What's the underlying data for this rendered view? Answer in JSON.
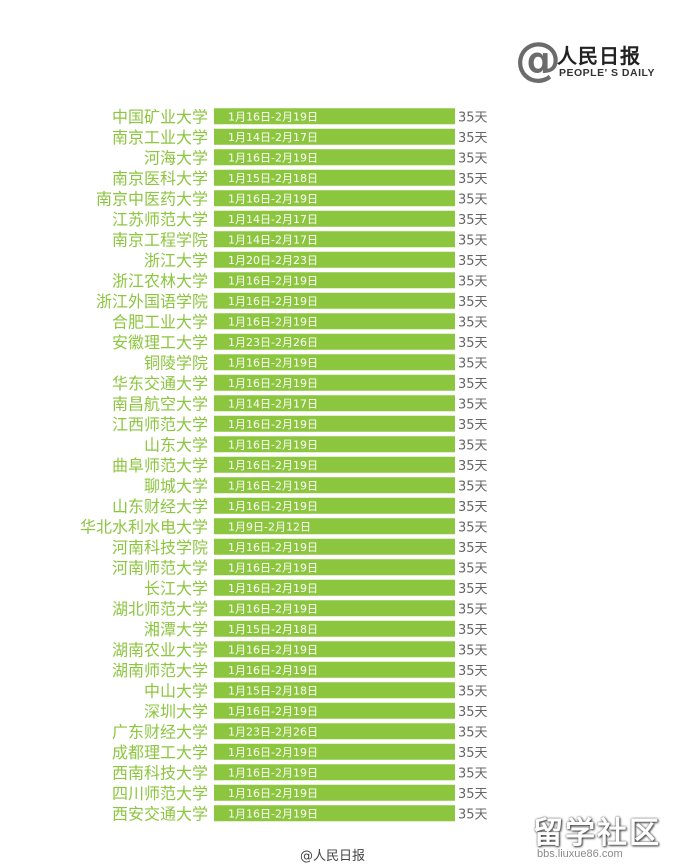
{
  "logo": {
    "symbol": "@",
    "name": "人民日报",
    "subtitle": "PEOPLE' S DAILY"
  },
  "footer": {
    "credit": "@人民日报"
  },
  "badge": {
    "main": "留学社区",
    "url": "bbs.liuxue86.com"
  },
  "colors": {
    "bar": "#8cc63f",
    "university_text": "#8cc63f",
    "bar_text": "#ffffff",
    "days_text": "#666666"
  },
  "chart_data": {
    "type": "bar",
    "orientation": "horizontal",
    "value_unit": "天",
    "categories": [
      "中国矿业大学",
      "南京工业大学",
      "河海大学",
      "南京医科大学",
      "南京中医药大学",
      "江苏师范大学",
      "南京工程学院",
      "浙江大学",
      "浙江农林大学",
      "浙江外国语学院",
      "合肥工业大学",
      "安徽理工大学",
      "铜陵学院",
      "华东交通大学",
      "南昌航空大学",
      "江西师范大学",
      "山东大学",
      "曲阜师范大学",
      "聊城大学",
      "山东财经大学",
      "华北水利水电大学",
      "河南科技学院",
      "河南师范大学",
      "长江大学",
      "湖北师范大学",
      "湘潭大学",
      "湖南农业大学",
      "湖南师范大学",
      "中山大学",
      "深圳大学",
      "广东财经大学",
      "成都理工大学",
      "西南科技大学",
      "四川师范大学",
      "西安交通大学"
    ],
    "date_ranges": [
      "1月16日-2月19日",
      "1月14日-2月17日",
      "1月16日-2月19日",
      "1月15日-2月18日",
      "1月16日-2月19日",
      "1月14日-2月17日",
      "1月14日-2月17日",
      "1月20日-2月23日",
      "1月16日-2月19日",
      "1月16日-2月19日",
      "1月16日-2月19日",
      "1月23日-2月26日",
      "1月16日-2月19日",
      "1月16日-2月19日",
      "1月14日-2月17日",
      "1月16日-2月19日",
      "1月16日-2月19日",
      "1月16日-2月19日",
      "1月16日-2月19日",
      "1月16日-2月19日",
      "1月9日-2月12日",
      "1月16日-2月19日",
      "1月16日-2月19日",
      "1月16日-2月19日",
      "1月16日-2月19日",
      "1月15日-2月18日",
      "1月16日-2月19日",
      "1月16日-2月19日",
      "1月15日-2月18日",
      "1月16日-2月19日",
      "1月23日-2月26日",
      "1月16日-2月19日",
      "1月16日-2月19日",
      "1月16日-2月19日",
      "1月16日-2月19日"
    ],
    "values": [
      35,
      35,
      35,
      35,
      35,
      35,
      35,
      35,
      35,
      35,
      35,
      35,
      35,
      35,
      35,
      35,
      35,
      35,
      35,
      35,
      35,
      35,
      35,
      35,
      35,
      35,
      35,
      35,
      35,
      35,
      35,
      35,
      35,
      35,
      35
    ],
    "value_labels": [
      "35天",
      "35天",
      "35天",
      "35天",
      "35天",
      "35天",
      "35天",
      "35天",
      "35天",
      "35天",
      "35天",
      "35天",
      "35天",
      "35天",
      "35天",
      "35天",
      "35天",
      "35天",
      "35天",
      "35天",
      "35天",
      "35天",
      "35天",
      "35天",
      "35天",
      "35天",
      "35天",
      "35天",
      "35天",
      "35天",
      "35天",
      "35天",
      "35天",
      "35天",
      "35天"
    ],
    "xlim": [
      0,
      35
    ],
    "grid": false,
    "legend": "none"
  }
}
